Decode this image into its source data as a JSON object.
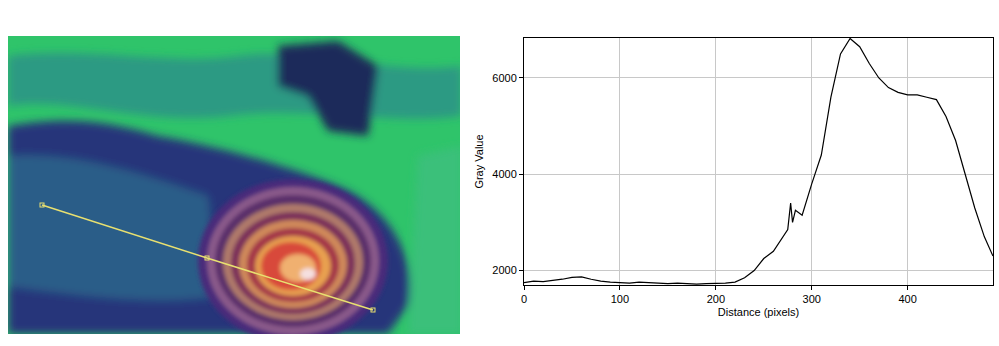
{
  "chart_data": {
    "type": "line",
    "x_label": "Distance (pixels)",
    "y_label": "Gray Value",
    "x": [
      0,
      10,
      20,
      30,
      40,
      50,
      60,
      70,
      80,
      90,
      100,
      110,
      120,
      130,
      140,
      150,
      160,
      170,
      180,
      190,
      200,
      210,
      220,
      230,
      240,
      250,
      260,
      270,
      275,
      278,
      280,
      283,
      290,
      300,
      310,
      320,
      330,
      340,
      350,
      360,
      370,
      380,
      390,
      400,
      410,
      420,
      430,
      440,
      450,
      460,
      470,
      480,
      489
    ],
    "values": [
      1750,
      1780,
      1770,
      1790,
      1820,
      1860,
      1870,
      1820,
      1780,
      1760,
      1750,
      1740,
      1760,
      1750,
      1740,
      1730,
      1740,
      1730,
      1720,
      1730,
      1730,
      1740,
      1760,
      1850,
      2000,
      2250,
      2400,
      2700,
      2850,
      3400,
      3000,
      3250,
      3150,
      3800,
      4400,
      5600,
      6500,
      6820,
      6650,
      6300,
      6000,
      5800,
      5700,
      5650,
      5650,
      5600,
      5550,
      5200,
      4700,
      4000,
      3300,
      2700,
      2300
    ],
    "color": "#000000",
    "xlim": [
      0,
      489
    ],
    "ylim": [
      1700,
      6830
    ],
    "xticks": [
      0,
      100,
      200,
      300,
      400
    ],
    "yticks": [
      2000,
      4000,
      6000
    ],
    "grid": true
  }
}
